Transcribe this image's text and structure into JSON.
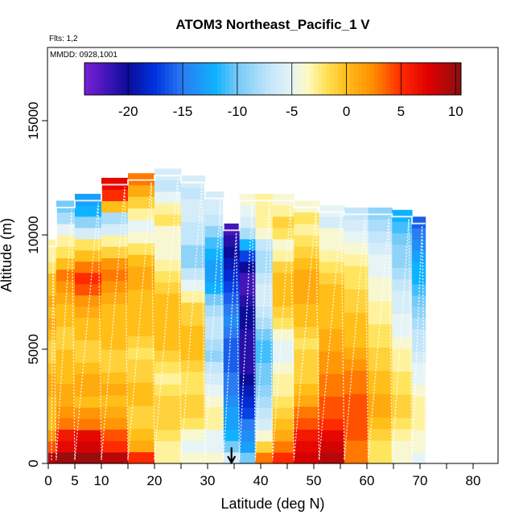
{
  "chart_data": {
    "type": "heatmap",
    "title": "ATOM3 Northeast_Pacific_1 V",
    "flights_note": "Flts: 1,2",
    "dates_note": "MMDD: 0928,1001",
    "xlabel": "Latitude (deg N)",
    "ylabel": "Altitude (m)",
    "xlim": [
      0,
      85
    ],
    "ylim": [
      0,
      18000
    ],
    "x_ticks": [
      0,
      5,
      10,
      20,
      30,
      40,
      50,
      60,
      70,
      80
    ],
    "x_minor_ticks": [
      15,
      25,
      35,
      45,
      55,
      65,
      75,
      85
    ],
    "y_ticks": [
      0,
      5000,
      10000,
      15000
    ],
    "marker_latitude": 34.5,
    "colorbar": {
      "min": -24,
      "max": 10.5,
      "tick_values": [
        -20,
        -15,
        -10,
        -5,
        0,
        5,
        10
      ],
      "tick_labels": [
        "-20",
        "-15",
        "-10",
        "-5",
        "0",
        "5",
        "10"
      ],
      "color_stops": [
        {
          "value": -24,
          "color": "#7a1fd8"
        },
        {
          "value": -20,
          "color": "#0c0c9a"
        },
        {
          "value": -17.5,
          "color": "#0033e0"
        },
        {
          "value": -15,
          "color": "#2a7cf2"
        },
        {
          "value": -12,
          "color": "#0fb2ff"
        },
        {
          "value": -10,
          "color": "#75caf8"
        },
        {
          "value": -7,
          "color": "#c4e6fb"
        },
        {
          "value": -5,
          "color": "#e6f4f5"
        },
        {
          "value": -3.5,
          "color": "#fff9c0"
        },
        {
          "value": -2,
          "color": "#ffe45e"
        },
        {
          "value": 0,
          "color": "#ffbe18"
        },
        {
          "value": 2.5,
          "color": "#ff8c00"
        },
        {
          "value": 5,
          "color": "#ff2a00"
        },
        {
          "value": 7.5,
          "color": "#e00000"
        },
        {
          "value": 10.5,
          "color": "#8b0f0f"
        }
      ]
    },
    "profile_columns": [
      {
        "lat": 0.5,
        "top": 9800,
        "values": [
          9,
          4,
          2,
          0,
          0,
          0,
          1,
          1,
          0,
          -1,
          -1,
          0,
          1,
          0,
          1,
          0,
          0,
          -2,
          -3,
          -3
        ]
      },
      {
        "lat": 2.5,
        "top": 11500,
        "values": [
          10,
          7,
          6,
          3,
          2,
          1,
          1,
          0,
          0,
          0,
          -1,
          -1,
          0,
          0,
          1,
          2,
          3,
          0,
          -2,
          -3,
          -5,
          -8,
          -10
        ]
      },
      {
        "lat": 7.5,
        "top": 11800,
        "values": [
          10,
          8,
          7,
          3,
          2,
          0,
          1,
          1,
          0,
          -1,
          -1,
          0,
          0,
          1,
          2,
          4,
          5,
          3,
          0,
          -2,
          -6,
          -9,
          -12,
          -13
        ]
      },
      {
        "lat": 12.5,
        "top": 12500,
        "values": [
          9,
          5,
          4,
          2,
          1,
          0,
          1,
          0,
          -1,
          -1,
          0,
          0,
          0,
          0,
          1,
          2,
          3,
          2,
          -1,
          -3,
          -6,
          -8,
          0,
          5,
          7
        ]
      },
      {
        "lat": 17.5,
        "top": 12700,
        "values": [
          5,
          1,
          0,
          -1,
          -1,
          0,
          0,
          -1,
          -1,
          -2,
          -1,
          0,
          0,
          0,
          0,
          1,
          1,
          0,
          -2,
          -4,
          -5,
          -3,
          -1,
          1,
          3
        ]
      },
      {
        "lat": 22.5,
        "top": 12900,
        "values": [
          -3,
          -3,
          -2,
          -1,
          -1,
          -1,
          -2,
          -3,
          -2,
          -1,
          0,
          0,
          0,
          0,
          0,
          -1,
          -2,
          -3,
          -4,
          -4,
          -4,
          -2,
          -3,
          -5,
          -7,
          -6
        ]
      },
      {
        "lat": 27.5,
        "top": 12600,
        "values": [
          -4,
          -5,
          -4,
          -2,
          -1,
          -1,
          -2,
          -2,
          -1,
          0,
          0,
          0,
          -1,
          -1,
          -3,
          -5,
          -7,
          -9,
          -9,
          -7,
          -7,
          -6,
          -6,
          -7,
          -6
        ]
      },
      {
        "lat": 31.5,
        "top": 11900,
        "values": [
          -4,
          -5,
          -5,
          -3,
          -3,
          -4,
          -5,
          -6,
          -7,
          -9,
          -8,
          -7,
          -7,
          -8,
          -10,
          -12,
          -13,
          -13,
          -12,
          -11,
          -9,
          -7,
          -6,
          -6
        ]
      },
      {
        "lat": 34.5,
        "top": 10500,
        "values": [
          -6,
          -10,
          -12,
          -13,
          -13,
          -14,
          -15,
          -15,
          -16,
          -16,
          -16,
          -15,
          -14,
          -15,
          -16,
          -17,
          -18,
          -19,
          -20,
          -21,
          -22
        ]
      },
      {
        "lat": 37.5,
        "top": 11800,
        "values": [
          -10,
          -13,
          -14,
          -15,
          -17,
          -18,
          -19,
          -20,
          -21,
          -21,
          -21,
          -21,
          -20,
          -20,
          -21,
          -22,
          -22,
          -20,
          -17,
          -12,
          -8,
          -6,
          -5,
          -4
        ]
      },
      {
        "lat": 40.5,
        "top": 11800,
        "values": [
          3,
          -1,
          -4,
          -6,
          -7,
          -8,
          -9,
          -10,
          -10,
          -11,
          -11,
          -10,
          -8,
          -7,
          -6,
          -6,
          -7,
          -8,
          -8,
          -7,
          -4,
          -3,
          -3,
          -3
        ]
      },
      {
        "lat": 44,
        "top": 11800,
        "values": [
          5,
          3,
          1,
          0,
          -1,
          -2,
          -3,
          -3,
          -4,
          -5,
          -5,
          -4,
          -2,
          -1,
          0,
          0,
          0,
          -1,
          -3,
          -4,
          -2,
          -1,
          -3,
          -4
        ]
      },
      {
        "lat": 48.5,
        "top": 11500,
        "values": [
          8,
          7,
          6,
          4,
          3,
          1,
          0,
          -1,
          -1,
          -1,
          -2,
          -1,
          0,
          0,
          1,
          1,
          1,
          0,
          -1,
          -2,
          -3,
          -2,
          -4
        ]
      },
      {
        "lat": 53.5,
        "top": 11300,
        "values": [
          9,
          8,
          7,
          5,
          4,
          4,
          3,
          3,
          2,
          2,
          1,
          1,
          0,
          0,
          0,
          0,
          -1,
          -2,
          -3,
          -4,
          -4,
          -6,
          -5
        ]
      },
      {
        "lat": 58,
        "top": 11200,
        "values": [
          3,
          3,
          4,
          4,
          4,
          4,
          3,
          3,
          2,
          1,
          0,
          0,
          0,
          -1,
          -1,
          -2,
          -2,
          -3,
          -4,
          -5,
          -6,
          -7
        ]
      },
      {
        "lat": 62.5,
        "top": 11200,
        "values": [
          -2,
          -2,
          -1,
          0,
          1,
          1,
          0,
          0,
          -1,
          -1,
          -2,
          -2,
          -3,
          -3,
          -4,
          -4,
          -5,
          -5,
          -6,
          -7,
          -8,
          -9
        ]
      },
      {
        "lat": 67,
        "top": 11100,
        "values": [
          -4,
          -4,
          -3,
          -2,
          -1,
          -1,
          -2,
          -2,
          -3,
          -3,
          -4,
          -5,
          -5,
          -6,
          -6,
          -7,
          -8,
          -9,
          -9,
          -10,
          -11,
          -12
        ]
      },
      {
        "lat": 70,
        "top": 10800,
        "values": [
          -5,
          -4,
          -4,
          -3,
          -3,
          -3,
          -4,
          -5,
          -5,
          -6,
          -7,
          -7,
          -8,
          -9,
          -10,
          -11,
          -12,
          -12,
          -13,
          -14,
          -15,
          -16
        ]
      }
    ]
  }
}
